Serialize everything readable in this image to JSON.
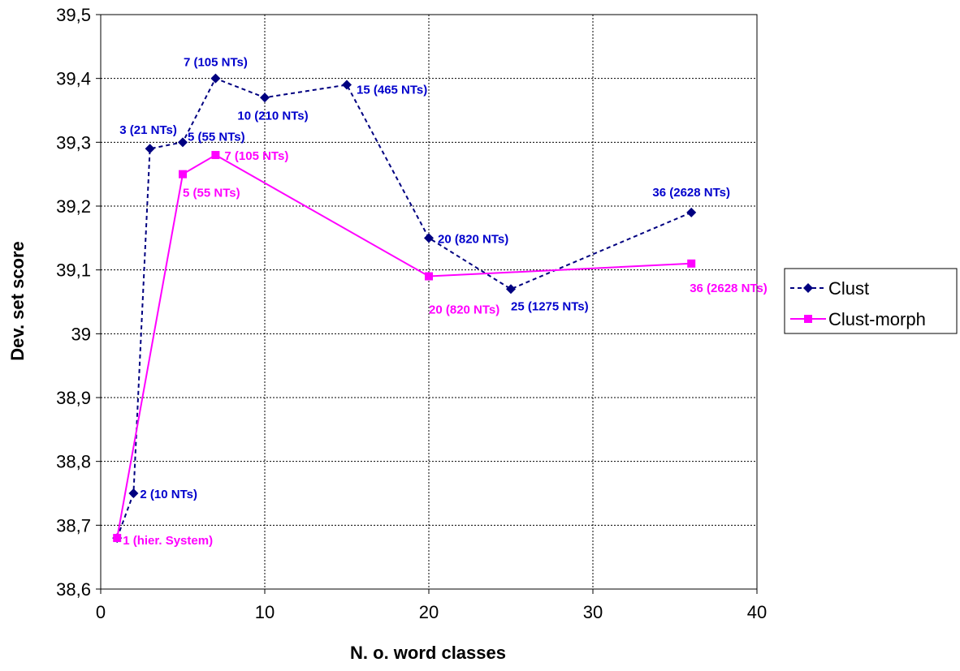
{
  "chart_data": {
    "type": "line",
    "xlabel": "N. o. word classes",
    "ylabel": "Dev. set score",
    "xlim": [
      0,
      40
    ],
    "ylim": [
      38.6,
      39.5
    ],
    "xticks": [
      0,
      10,
      20,
      30,
      40
    ],
    "xtick_labels": [
      "0",
      "10",
      "20",
      "30",
      "40"
    ],
    "yticks": [
      38.6,
      38.7,
      38.8,
      38.9,
      39.0,
      39.1,
      39.2,
      39.3,
      39.4,
      39.5
    ],
    "ytick_labels": [
      "38,6",
      "38,7",
      "38,8",
      "38,9",
      "39",
      "39,1",
      "39,2",
      "39,3",
      "39,4",
      "39,5"
    ],
    "grid": true,
    "legend_position": "right",
    "series": [
      {
        "name": "Clust",
        "color": "#000080",
        "line_style": "dashed",
        "marker": "diamond",
        "points": [
          {
            "x": 1,
            "y": 38.68,
            "label": ""
          },
          {
            "x": 2,
            "y": 38.75,
            "label": "2 (10 NTs)"
          },
          {
            "x": 3,
            "y": 39.29,
            "label": "3 (21 NTs)"
          },
          {
            "x": 5,
            "y": 39.3,
            "label": "5 (55 NTs)"
          },
          {
            "x": 7,
            "y": 39.4,
            "label": "7 (105 NTs)"
          },
          {
            "x": 10,
            "y": 39.37,
            "label": "10 (210 NTs)"
          },
          {
            "x": 15,
            "y": 39.39,
            "label": "15 (465 NTs)"
          },
          {
            "x": 20,
            "y": 39.15,
            "label": "20 (820 NTs)"
          },
          {
            "x": 25,
            "y": 39.07,
            "label": "25 (1275 NTs)"
          },
          {
            "x": 36,
            "y": 39.19,
            "label": "36 (2628 NTs)"
          }
        ]
      },
      {
        "name": "Clust-morph",
        "color": "#FF00FF",
        "line_style": "solid",
        "marker": "square",
        "points": [
          {
            "x": 1,
            "y": 38.68,
            "label": "1 (hier. System)"
          },
          {
            "x": 5,
            "y": 39.25,
            "label": "5 (55 NTs)"
          },
          {
            "x": 7,
            "y": 39.28,
            "label": "7 (105 NTs)"
          },
          {
            "x": 20,
            "y": 39.09,
            "label": "20 (820 NTs)"
          },
          {
            "x": 36,
            "y": 39.11,
            "label": "36 (2628 NTs)"
          }
        ]
      }
    ]
  }
}
